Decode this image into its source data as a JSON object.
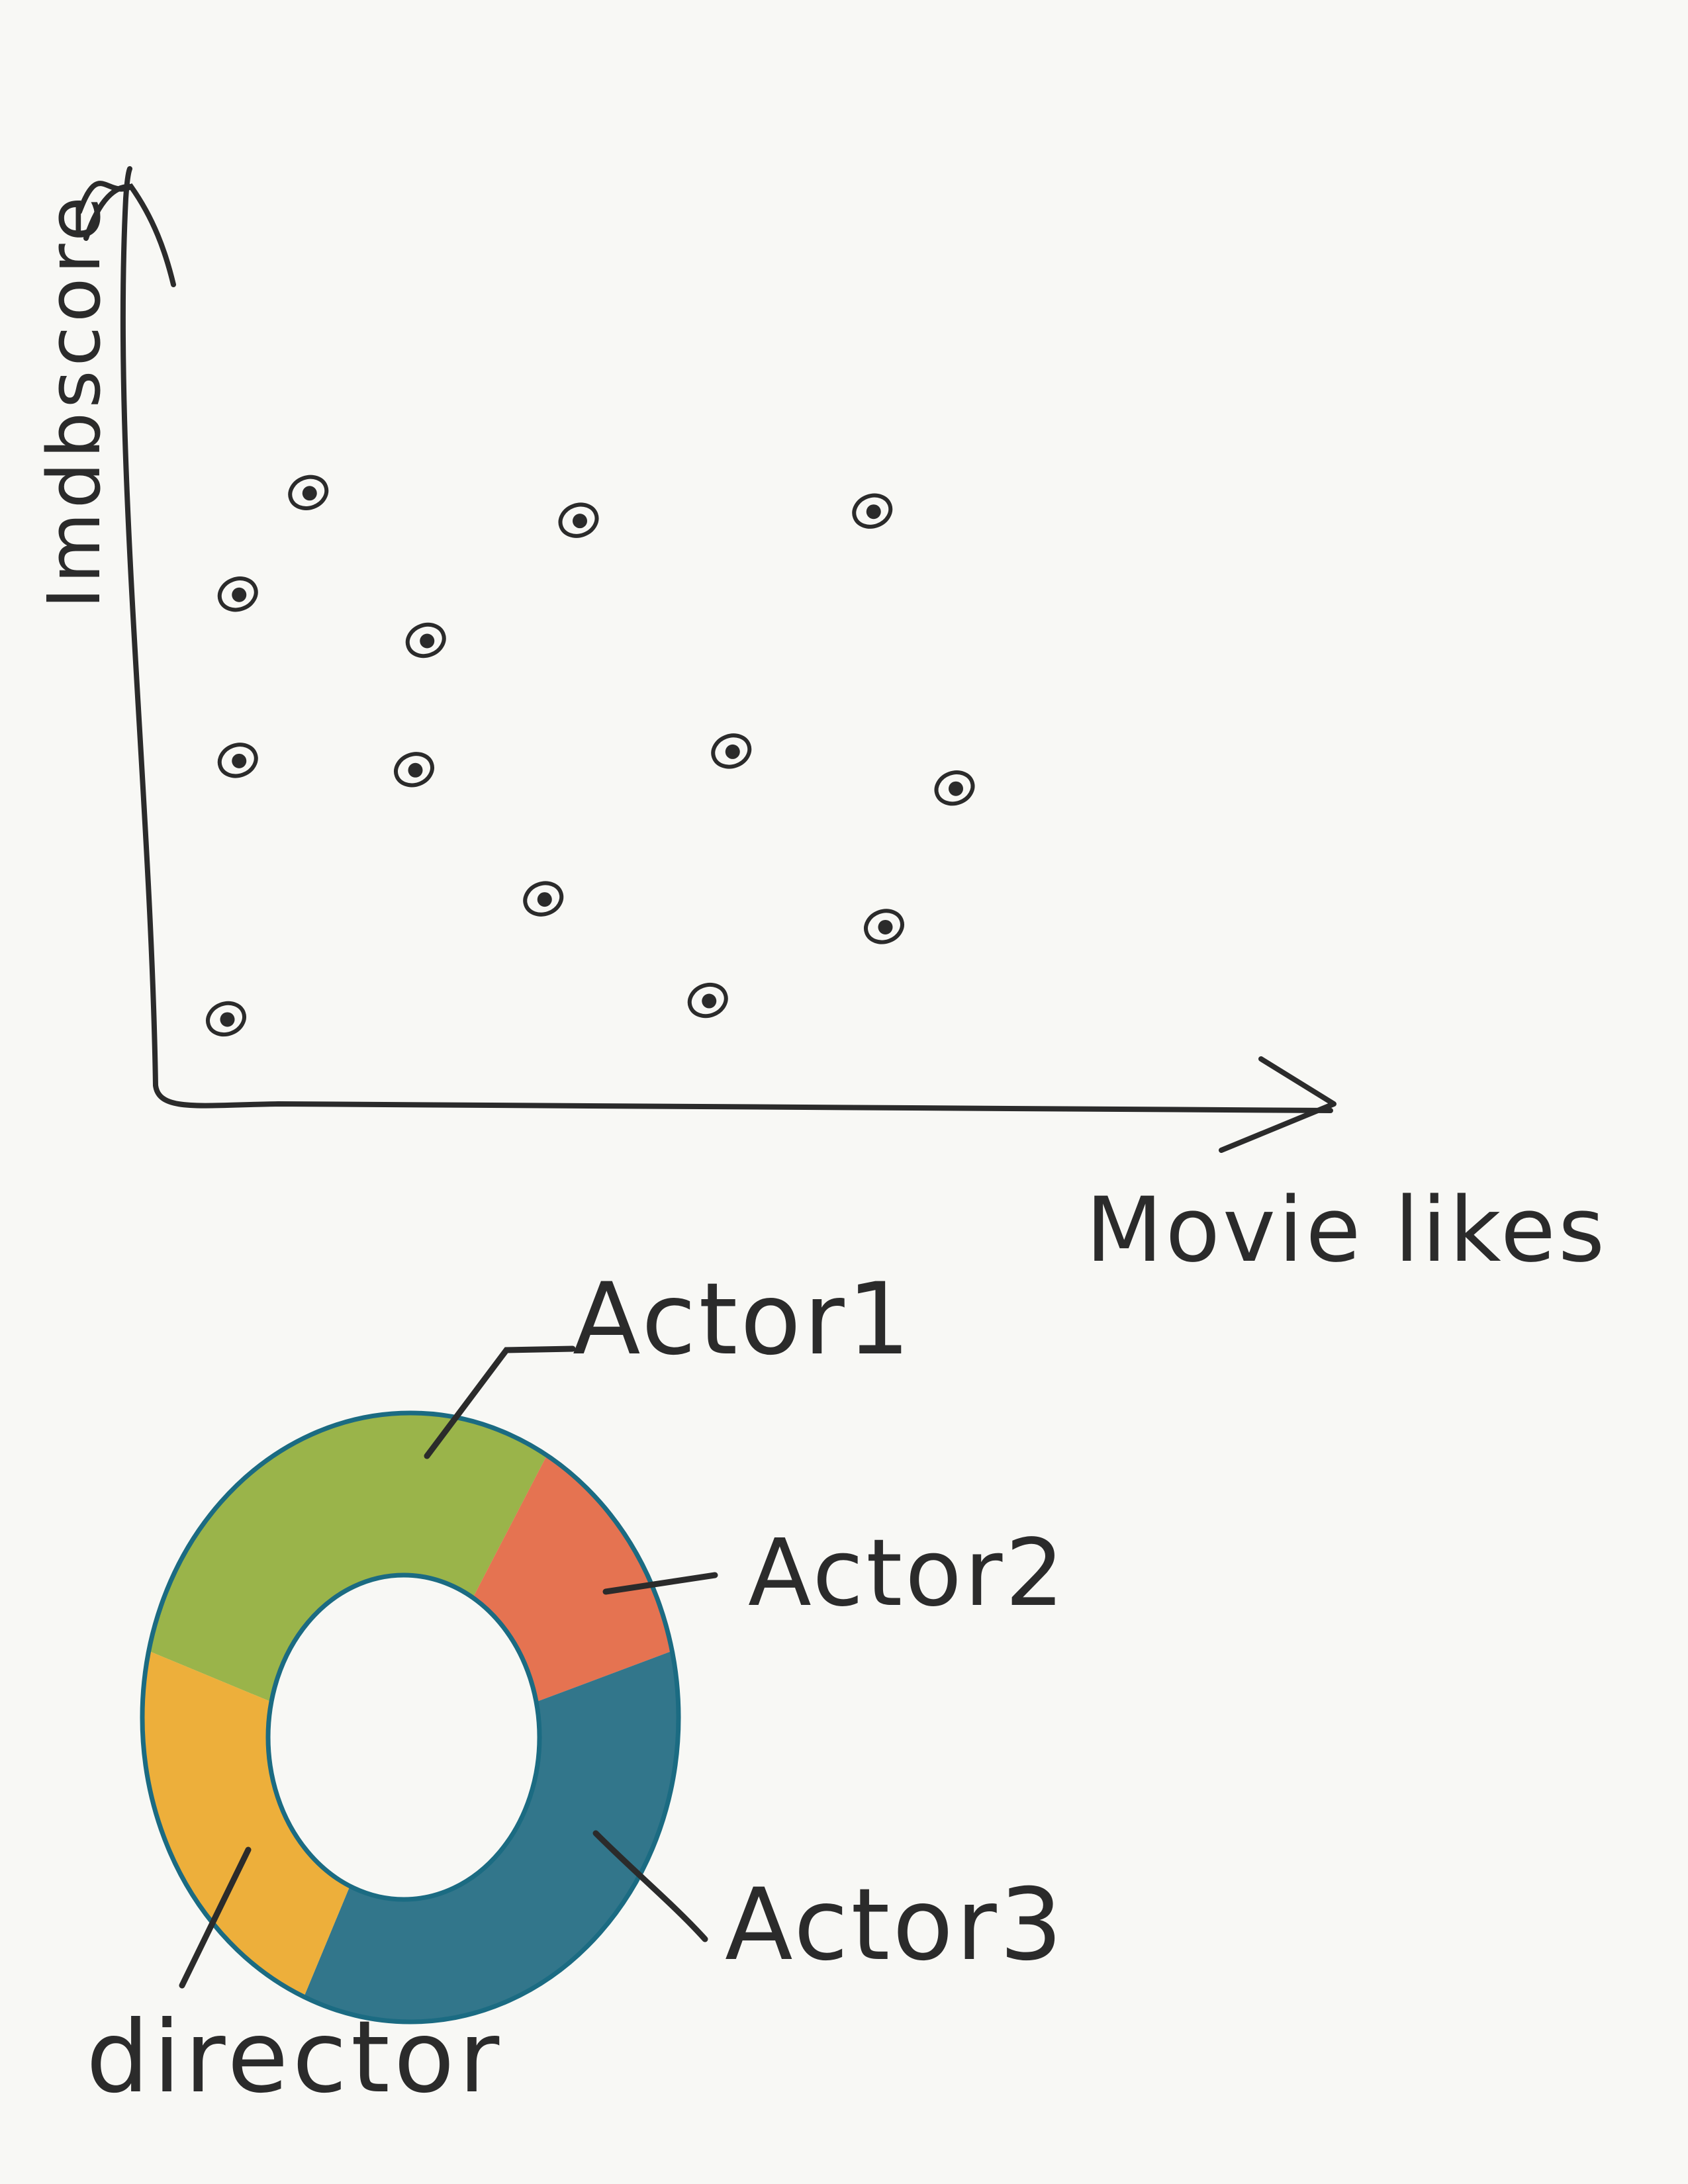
{
  "chart_data": [
    {
      "type": "scatter",
      "xlabel": "Movie likes",
      "ylabel": "Imdbscore",
      "xlim": [
        0,
        100
      ],
      "ylim": [
        0,
        100
      ],
      "points": [
        {
          "x": 13,
          "y": 66
        },
        {
          "x": 7,
          "y": 55
        },
        {
          "x": 23,
          "y": 50
        },
        {
          "x": 36,
          "y": 63
        },
        {
          "x": 61,
          "y": 64
        },
        {
          "x": 7,
          "y": 37
        },
        {
          "x": 22,
          "y": 36
        },
        {
          "x": 49,
          "y": 38
        },
        {
          "x": 68,
          "y": 34
        },
        {
          "x": 33,
          "y": 22
        },
        {
          "x": 62,
          "y": 19
        },
        {
          "x": 6,
          "y": 9
        },
        {
          "x": 47,
          "y": 11
        }
      ]
    },
    {
      "type": "pie",
      "style": "donut",
      "slices": [
        {
          "label": "Actor1",
          "value": 30,
          "color": "#8aa82b"
        },
        {
          "label": "Actor2",
          "value": 13,
          "color": "#e25c34"
        },
        {
          "label": "Actor3",
          "value": 35,
          "color": "#0f5f78"
        },
        {
          "label": "director",
          "value": 22,
          "color": "#eba21a"
        }
      ]
    }
  ],
  "colors": {
    "ink": "#2b2b2b",
    "donut_outline": "#1b6b82",
    "background": "#f8f8f5"
  }
}
